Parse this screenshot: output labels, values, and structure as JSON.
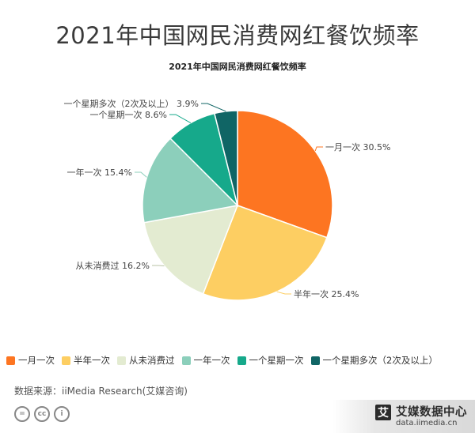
{
  "header": {
    "title": "2021年中国网民消费网红餐饮频率"
  },
  "chart_data": {
    "type": "pie",
    "title": "2021年中国网民消费网红餐饮频率",
    "categories": [
      "一月一次",
      "半年一次",
      "从未消费过",
      "一年一次",
      "一个星期一次",
      "一个星期多次（2次及以上）"
    ],
    "slice_labels": [
      "一月一次",
      "半年一次",
      "从未消费过",
      "一年一次",
      "一个星期一次",
      "一个星期多次（2次及以上）"
    ],
    "legend_labels": [
      "一月一次",
      "半年一次",
      "从未消费过",
      "一年一次",
      "一个星期一次",
      "一个星期多次（2次及以上）"
    ],
    "values": [
      30.5,
      25.4,
      16.2,
      15.4,
      8.6,
      3.9
    ],
    "value_labels": [
      "30.5%",
      "25.4%",
      "16.2%",
      "15.4%",
      "8.6%",
      "3.9%"
    ],
    "colors": [
      "#fd7521",
      "#fdce62",
      "#e3ebd1",
      "#8ccfbb",
      "#16a98b",
      "#106565"
    ],
    "legend_position": "bottom"
  },
  "footer": {
    "source": "数据来源：iiMedia Research(艾媒咨询)",
    "brand_name": "艾媒数据中心",
    "brand_url": "data.iimedia.cn",
    "brand_mark": "艾",
    "cc_icons": [
      "equals-icon",
      "cc-icon",
      "person-icon"
    ],
    "cc_glyphs": [
      "=",
      "cc",
      "i"
    ]
  }
}
